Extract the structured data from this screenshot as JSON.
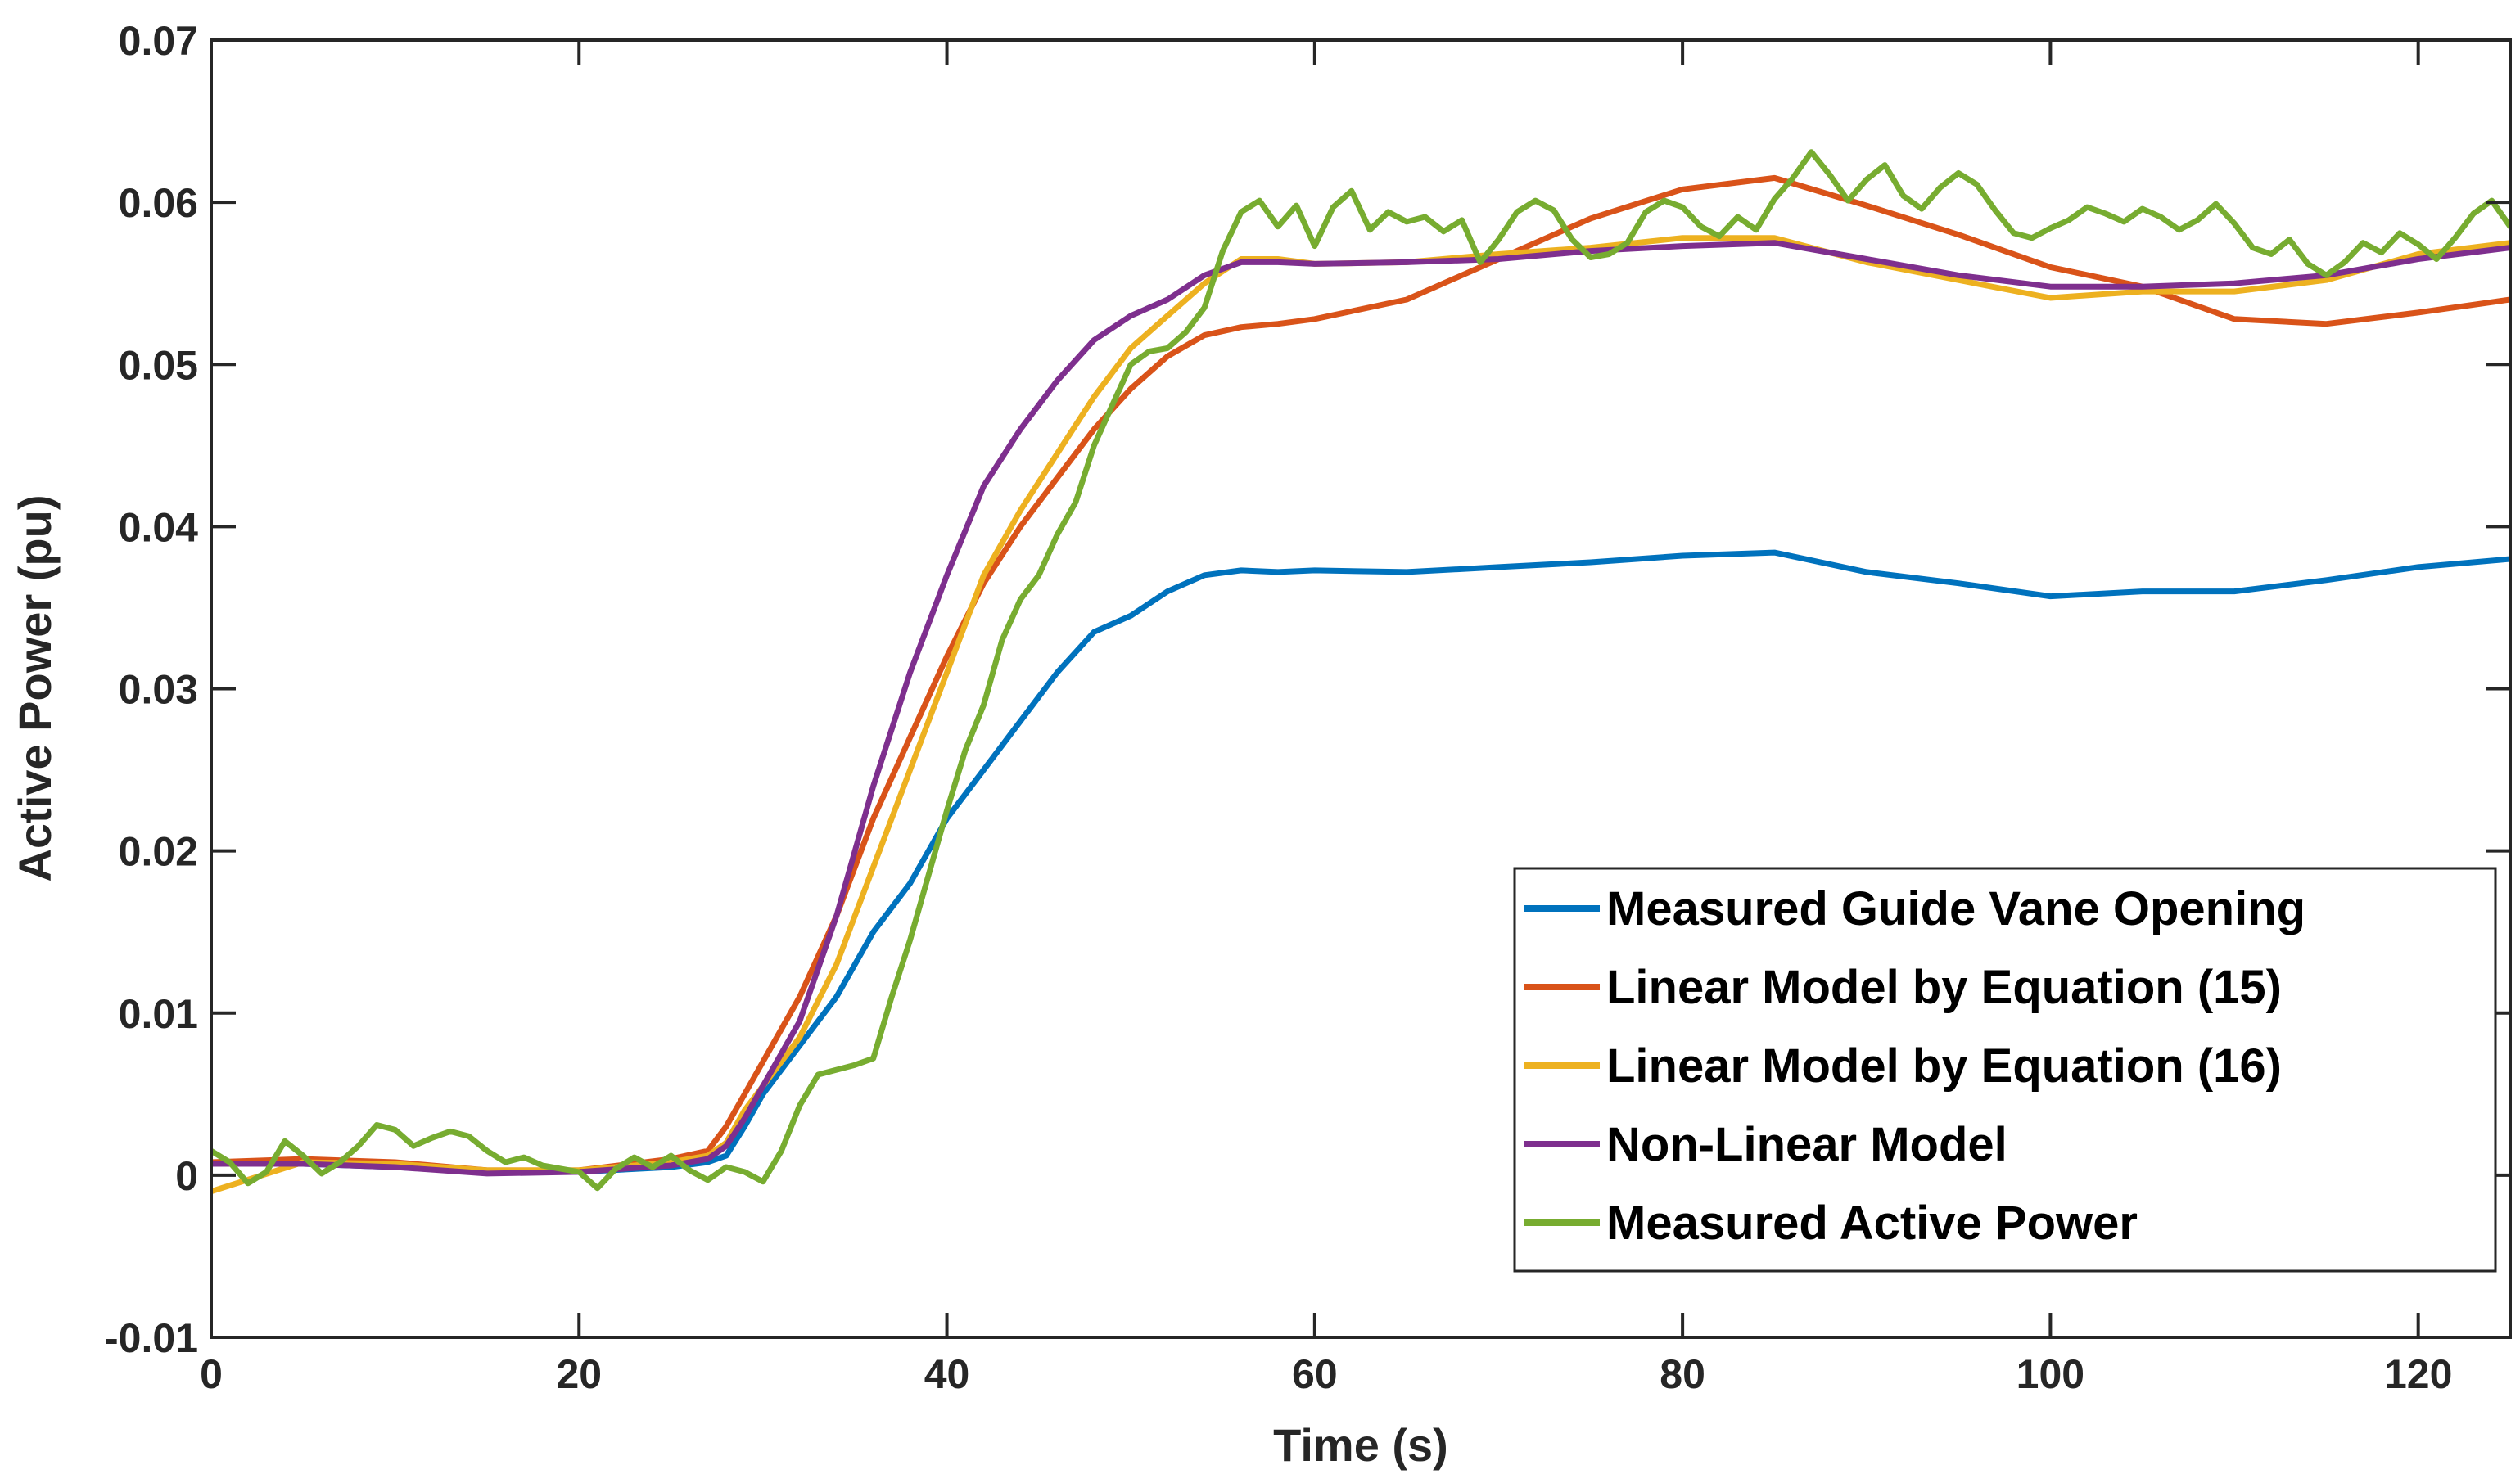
{
  "chart_data": {
    "type": "line",
    "title": "",
    "xlabel": "Time (s)",
    "ylabel": "Active Power (pu)",
    "xlim": [
      0,
      125
    ],
    "ylim": [
      -0.01,
      0.07
    ],
    "xticks": [
      0,
      20,
      40,
      60,
      80,
      100,
      120
    ],
    "xtick_labels": [
      "0",
      "20",
      "40",
      "60",
      "80",
      "100",
      "120"
    ],
    "yticks": [
      -0.01,
      0,
      0.01,
      0.02,
      0.03,
      0.04,
      0.05,
      0.06,
      0.07
    ],
    "ytick_labels": [
      "-0.01",
      "0",
      "0.01",
      "0.02",
      "0.03",
      "0.04",
      "0.05",
      "0.06",
      "0.07"
    ],
    "grid": false,
    "legend_position": "bottom-right",
    "series": [
      {
        "name": "Measured Guide Vane Opening",
        "color": "#0072BD",
        "x": [
          0,
          5,
          10,
          15,
          20,
          25,
          27,
          28,
          29,
          30,
          32,
          34,
          36,
          38,
          40,
          42,
          44,
          46,
          48,
          50,
          52,
          54,
          56,
          58,
          60,
          65,
          70,
          75,
          80,
          85,
          90,
          95,
          100,
          105,
          110,
          115,
          120,
          125
        ],
        "y": [
          0.0008,
          0.0007,
          0.0005,
          0.0002,
          0.0002,
          0.0005,
          0.0008,
          0.0012,
          0.003,
          0.005,
          0.008,
          0.011,
          0.015,
          0.018,
          0.022,
          0.025,
          0.028,
          0.031,
          0.0335,
          0.0345,
          0.036,
          0.037,
          0.0373,
          0.0372,
          0.0373,
          0.0372,
          0.0375,
          0.0378,
          0.0382,
          0.0384,
          0.0372,
          0.0365,
          0.0357,
          0.036,
          0.036,
          0.0367,
          0.0375,
          0.038
        ]
      },
      {
        "name": "Linear Model by Equation (15)",
        "color": "#D95319",
        "x": [
          0,
          5,
          10,
          15,
          20,
          25,
          27,
          28,
          29,
          30,
          32,
          34,
          36,
          38,
          40,
          42,
          44,
          46,
          48,
          50,
          52,
          54,
          56,
          58,
          60,
          65,
          70,
          75,
          80,
          85,
          90,
          95,
          100,
          105,
          110,
          115,
          120,
          125
        ],
        "y": [
          0.0008,
          0.001,
          0.0008,
          0.0003,
          0.0003,
          0.001,
          0.0015,
          0.003,
          0.005,
          0.007,
          0.011,
          0.016,
          0.022,
          0.027,
          0.032,
          0.0365,
          0.04,
          0.043,
          0.046,
          0.0485,
          0.0505,
          0.0518,
          0.0523,
          0.0525,
          0.0528,
          0.054,
          0.0565,
          0.059,
          0.0608,
          0.0615,
          0.0598,
          0.058,
          0.056,
          0.0548,
          0.0528,
          0.0525,
          0.0532,
          0.054
        ]
      },
      {
        "name": "Linear Model by Equation (16)",
        "color": "#EDB120",
        "x": [
          0,
          5,
          10,
          15,
          20,
          25,
          27,
          28,
          29,
          30,
          32,
          34,
          36,
          38,
          40,
          42,
          44,
          46,
          48,
          50,
          52,
          54,
          56,
          58,
          60,
          65,
          70,
          75,
          80,
          85,
          90,
          95,
          100,
          105,
          110,
          115,
          120,
          125
        ],
        "y": [
          -0.001,
          0.0008,
          0.0007,
          0.0003,
          0.0003,
          0.0008,
          0.0012,
          0.002,
          0.004,
          0.0055,
          0.0085,
          0.013,
          0.019,
          0.025,
          0.031,
          0.037,
          0.041,
          0.0445,
          0.048,
          0.051,
          0.053,
          0.055,
          0.0565,
          0.0565,
          0.0562,
          0.0563,
          0.0568,
          0.0572,
          0.0578,
          0.0578,
          0.0563,
          0.0552,
          0.0541,
          0.0545,
          0.0545,
          0.0552,
          0.0568,
          0.0575
        ]
      },
      {
        "name": "Non-Linear Model",
        "color": "#7E2F8E",
        "x": [
          0,
          5,
          10,
          15,
          20,
          25,
          27,
          28,
          29,
          30,
          32,
          34,
          36,
          38,
          40,
          42,
          44,
          46,
          48,
          50,
          52,
          54,
          56,
          58,
          60,
          65,
          70,
          75,
          80,
          85,
          90,
          95,
          100,
          105,
          110,
          115,
          120,
          125
        ],
        "y": [
          0.0007,
          0.0007,
          0.0005,
          0.0001,
          0.0002,
          0.0006,
          0.001,
          0.0018,
          0.0035,
          0.0055,
          0.0095,
          0.016,
          0.024,
          0.031,
          0.037,
          0.0425,
          0.046,
          0.049,
          0.0515,
          0.053,
          0.054,
          0.0555,
          0.0563,
          0.0563,
          0.0562,
          0.0563,
          0.0565,
          0.057,
          0.0573,
          0.0575,
          0.0565,
          0.0555,
          0.0548,
          0.0548,
          0.055,
          0.0555,
          0.0565,
          0.0572
        ]
      },
      {
        "name": "Measured Active Power",
        "color": "#77AC30",
        "x": [
          0,
          1,
          2,
          3,
          4,
          5,
          6,
          7,
          8,
          9,
          10,
          11,
          12,
          13,
          14,
          15,
          16,
          17,
          18,
          19,
          20,
          21,
          22,
          23,
          24,
          25,
          26,
          27,
          28,
          29,
          30,
          31,
          32,
          33,
          34,
          35,
          36,
          37,
          38,
          39,
          40,
          41,
          42,
          43,
          44,
          45,
          46,
          47,
          48,
          49,
          50,
          51,
          52,
          53,
          54,
          55,
          56,
          57,
          58,
          59,
          60,
          61,
          62,
          63,
          64,
          65,
          66,
          67,
          68,
          69,
          70,
          71,
          72,
          73,
          74,
          75,
          76,
          77,
          78,
          79,
          80,
          81,
          82,
          83,
          84,
          85,
          86,
          87,
          88,
          89,
          90,
          91,
          92,
          93,
          94,
          95,
          96,
          97,
          98,
          99,
          100,
          101,
          102,
          103,
          104,
          105,
          106,
          107,
          108,
          109,
          110,
          111,
          112,
          113,
          114,
          115,
          116,
          117,
          118,
          119,
          120,
          121,
          122,
          123,
          124,
          125
        ],
        "y": [
          0.0015,
          0.0008,
          -0.0005,
          0.0002,
          0.0021,
          0.0012,
          0.0001,
          0.0008,
          0.0018,
          0.0031,
          0.0028,
          0.0018,
          0.0023,
          0.0027,
          0.0024,
          0.0015,
          0.0008,
          0.0011,
          0.0006,
          0.0004,
          0.0002,
          -0.0008,
          0.0004,
          0.0011,
          0.0005,
          0.0012,
          0.0003,
          -0.0003,
          0.0005,
          0.0002,
          -0.0004,
          0.0015,
          0.0043,
          0.0062,
          0.0065,
          0.0068,
          0.0072,
          0.011,
          0.0145,
          0.0185,
          0.0225,
          0.0262,
          0.029,
          0.033,
          0.0355,
          0.037,
          0.0395,
          0.0415,
          0.045,
          0.0475,
          0.05,
          0.0508,
          0.051,
          0.052,
          0.0535,
          0.057,
          0.0594,
          0.0601,
          0.0585,
          0.0598,
          0.0573,
          0.0597,
          0.0607,
          0.0583,
          0.0594,
          0.0588,
          0.0591,
          0.0582,
          0.0589,
          0.0563,
          0.0577,
          0.0594,
          0.0601,
          0.0595,
          0.0577,
          0.0566,
          0.0568,
          0.0575,
          0.0594,
          0.0601,
          0.0597,
          0.0585,
          0.0579,
          0.0591,
          0.0583,
          0.0602,
          0.0615,
          0.0631,
          0.0617,
          0.0601,
          0.0614,
          0.0623,
          0.0604,
          0.0596,
          0.0609,
          0.0618,
          0.0611,
          0.0595,
          0.0581,
          0.0578,
          0.0584,
          0.0589,
          0.0597,
          0.0593,
          0.0588,
          0.0596,
          0.0591,
          0.0583,
          0.0589,
          0.0599,
          0.0587,
          0.0572,
          0.0568,
          0.0577,
          0.0562,
          0.0555,
          0.0563,
          0.0575,
          0.0569,
          0.0581,
          0.0574,
          0.0565,
          0.0578,
          0.0593,
          0.0601,
          0.0585
        ]
      }
    ]
  }
}
